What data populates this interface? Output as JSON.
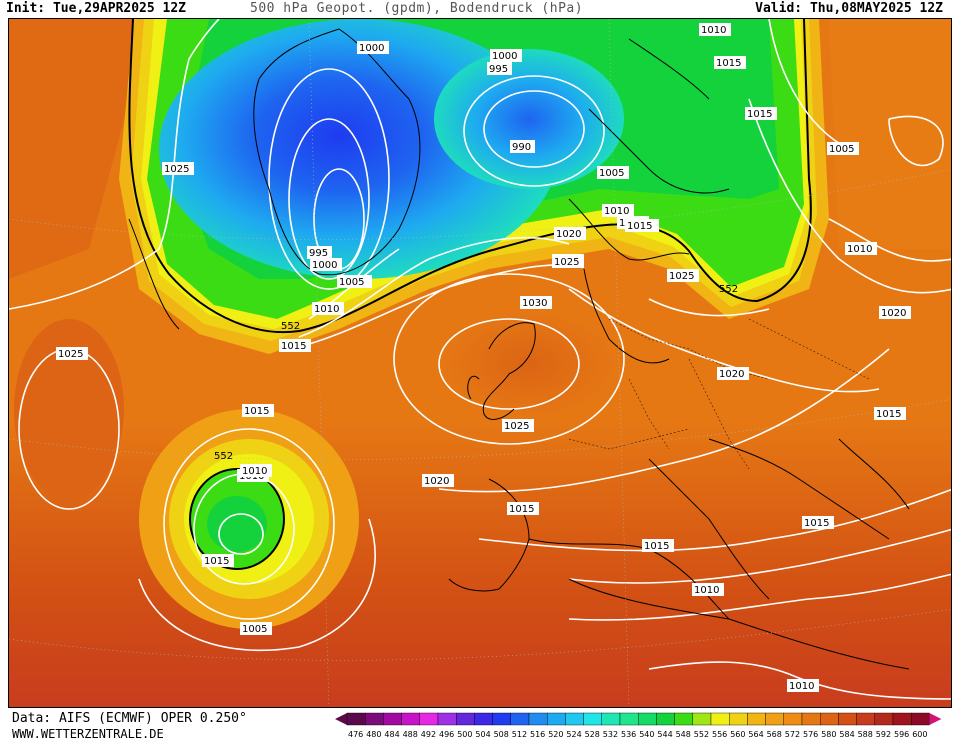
{
  "header": {
    "init": "Init: Tue,29APR2025 12Z",
    "title": "500 hPa Geopot. (gpdm), Bodendruck (hPa)",
    "valid": "Valid: Thu,08MAY2025 12Z"
  },
  "footer": {
    "source": "Data: AIFS (ECMWF) OPER 0.250°",
    "site": "WWW.WETTERZENTRALE.DE"
  },
  "pressure_labels": [
    "1010",
    "1015",
    "1000",
    "1000",
    "995",
    "990",
    "1010",
    "1005",
    "1025",
    "1005",
    "1005",
    "1010",
    "1015",
    "1020",
    "1010",
    "1025",
    "995",
    "1000",
    "1005",
    "1025",
    "1030",
    "552",
    "1010",
    "1015",
    "1015",
    "1025",
    "1015",
    "1020",
    "1020",
    "1025",
    "552",
    "1010",
    "1015",
    "1020",
    "1015",
    "1005",
    "1015",
    "1015",
    "1015",
    "1010",
    "1015",
    "1010",
    "1010",
    "552",
    "1025"
  ],
  "colorbar": {
    "ticks": [
      "476",
      "480",
      "484",
      "488",
      "492",
      "496",
      "500",
      "504",
      "508",
      "512",
      "516",
      "520",
      "524",
      "528",
      "532",
      "536",
      "540",
      "544",
      "548",
      "552",
      "556",
      "560",
      "564",
      "568",
      "572",
      "576",
      "580",
      "584",
      "588",
      "592",
      "596",
      "600"
    ],
    "colors": [
      "#5a0a4a",
      "#7d0a7d",
      "#a00aa0",
      "#c814c8",
      "#e628e6",
      "#a030e6",
      "#6428dc",
      "#3c28e6",
      "#1e3cf0",
      "#1e64f0",
      "#1e8cf0",
      "#1eaaf0",
      "#1ec8f0",
      "#1ee6e6",
      "#1ee6b4",
      "#1ee68c",
      "#14dc64",
      "#14d23c",
      "#3cdc14",
      "#a0e614",
      "#f0f014",
      "#f0d214",
      "#f0b414",
      "#f0a014",
      "#f08c14",
      "#e67814",
      "#dc6414",
      "#d25014",
      "#c83c1e",
      "#b4281e",
      "#a0141e",
      "#8c0a28"
    ]
  }
}
